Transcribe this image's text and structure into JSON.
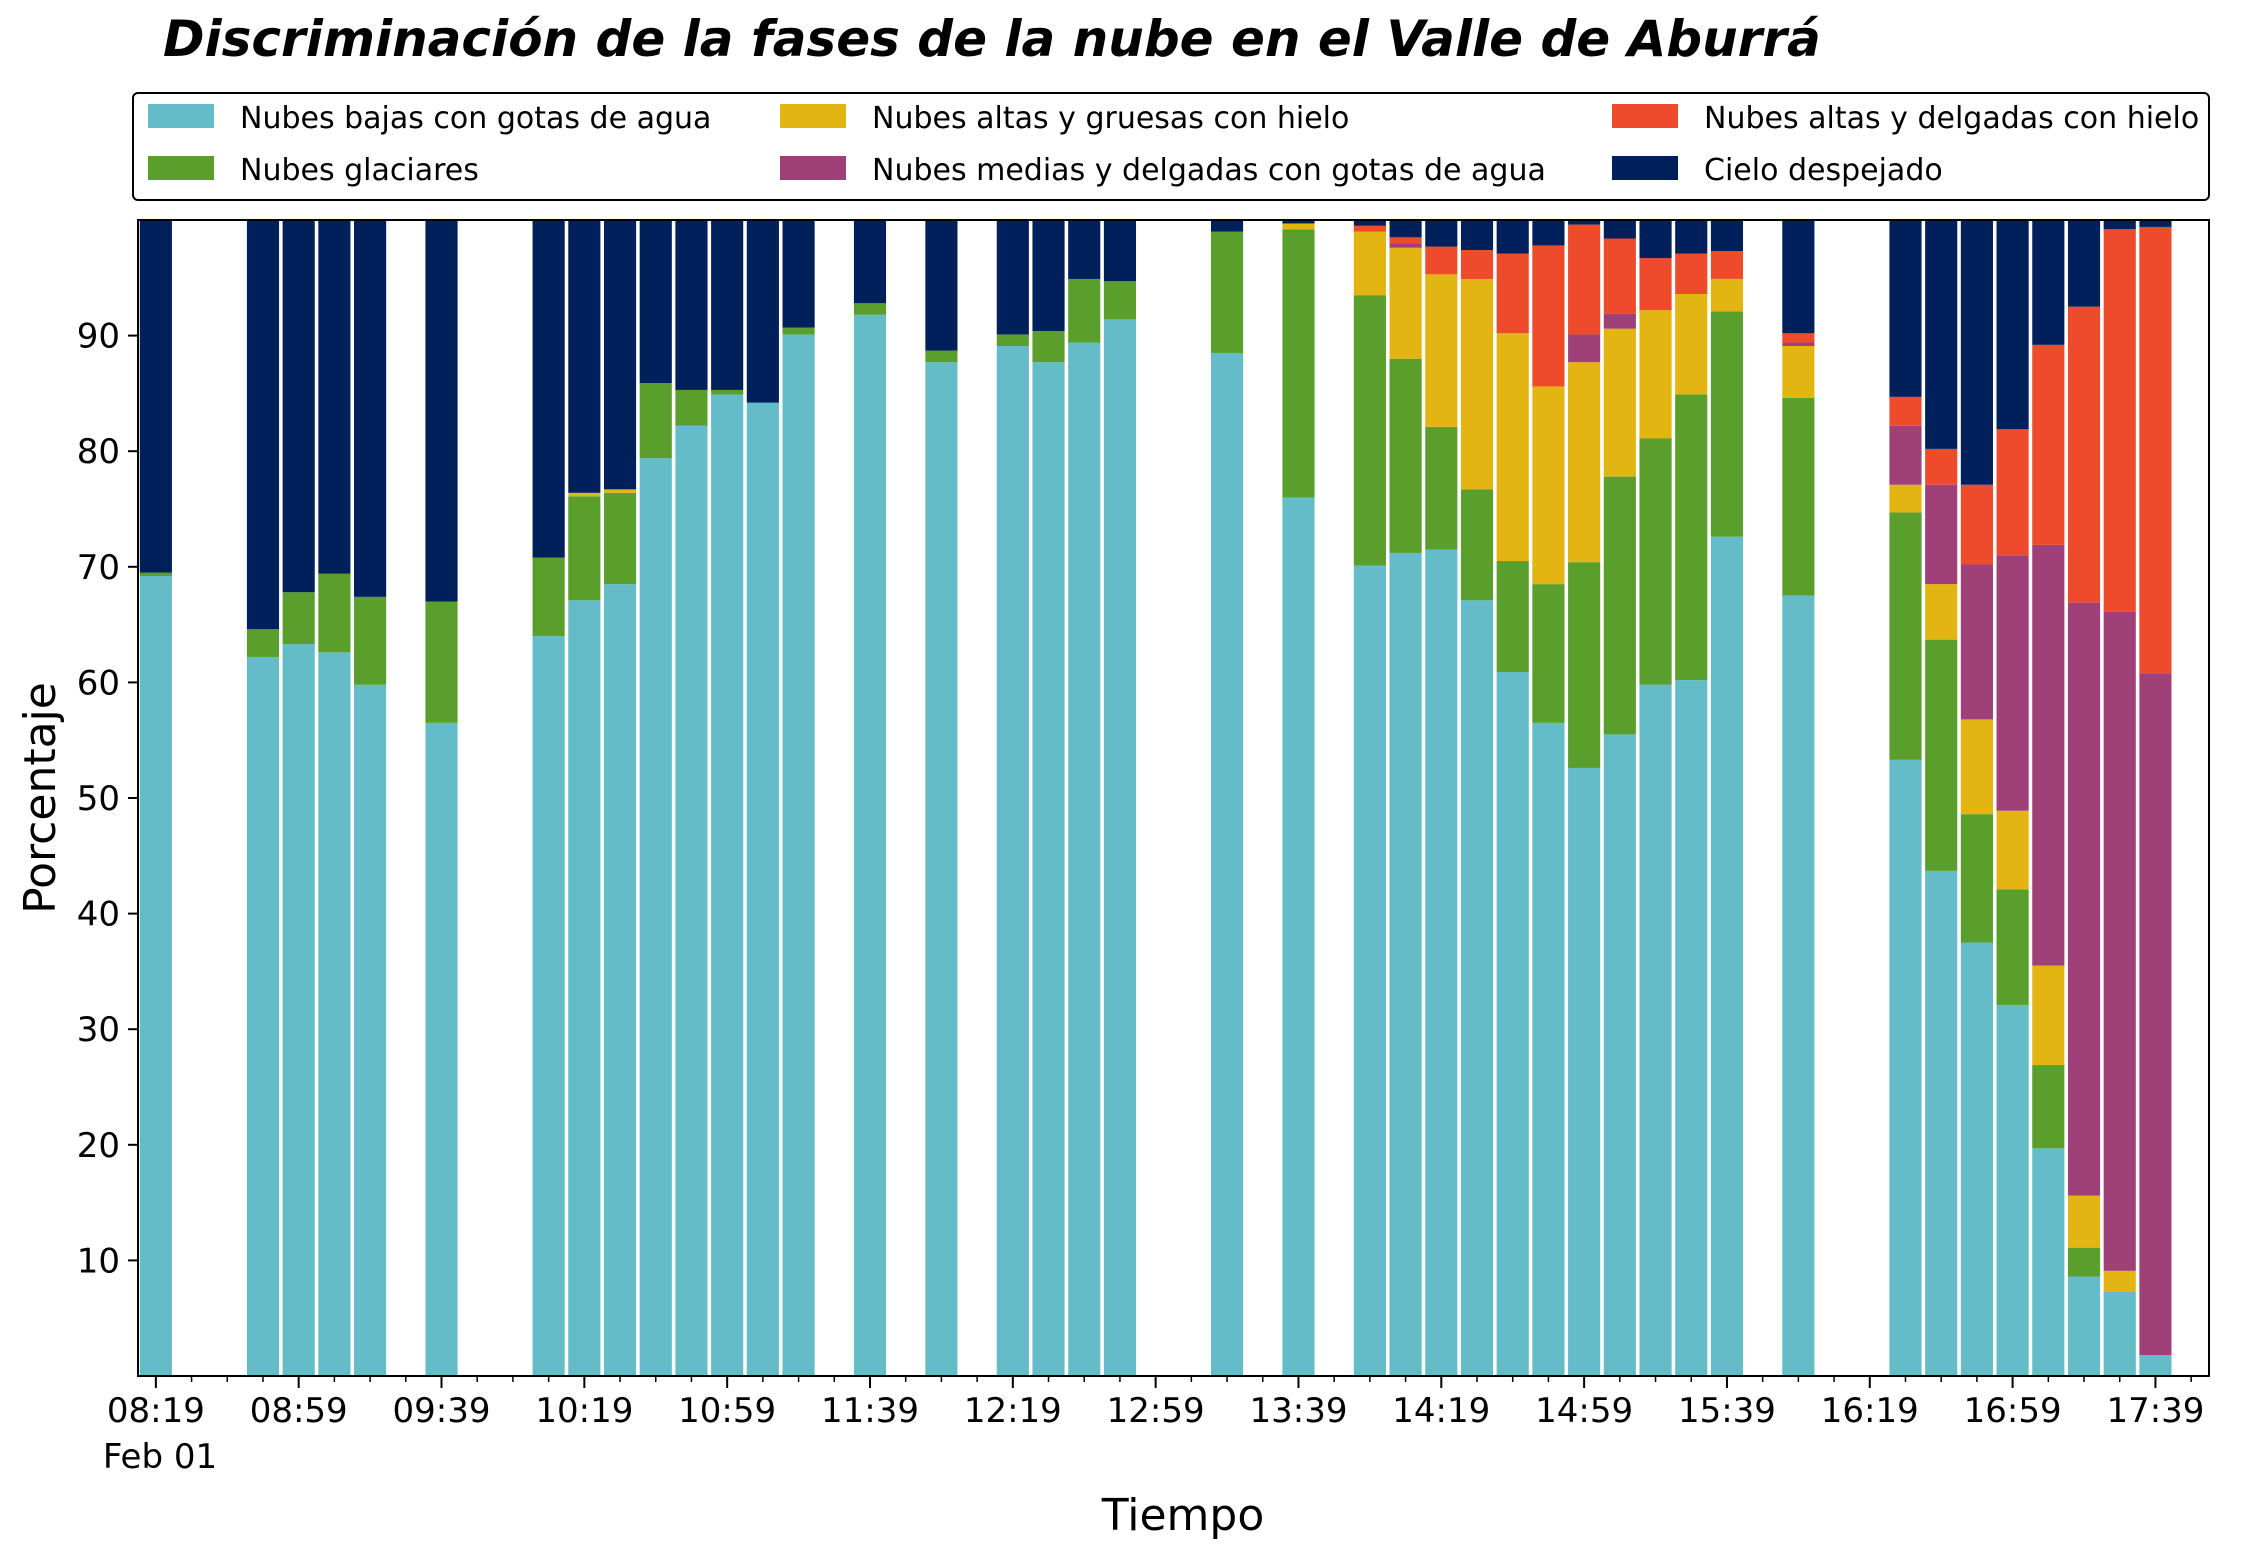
{
  "chart_data": {
    "type": "bar",
    "stacked": true,
    "title": "Discriminación de la fases de la nube en el Valle de Aburrá",
    "xlabel": "Tiempo",
    "ylabel": "Porcentaje",
    "ylim": [
      0,
      100
    ],
    "yticks": [
      10,
      20,
      30,
      40,
      50,
      60,
      70,
      80,
      90
    ],
    "x_interval_minutes": 10,
    "x_range": [
      "08:14",
      "17:54"
    ],
    "xtick_labels": [
      "08:19",
      "08:59",
      "09:39",
      "10:19",
      "10:59",
      "11:39",
      "12:19",
      "12:59",
      "13:39",
      "14:19",
      "14:59",
      "15:39",
      "16:19",
      "16:59",
      "17:39"
    ],
    "date_label": "Feb 01",
    "grid": false,
    "legend_placement": "top",
    "x": [
      "08:19",
      "08:49",
      "08:54",
      "08:59",
      "09:04",
      "09:09",
      "09:14",
      "09:19",
      "09:24",
      "09:29",
      "09:34",
      "09:39",
      "09:44",
      "09:49",
      "09:54",
      "09:59",
      "10:04",
      "10:09",
      "10:14",
      "10:19",
      "10:24",
      "10:29",
      "10:34",
      "10:39",
      "10:44",
      "10:49",
      "10:54",
      "10:59",
      "11:04",
      "11:09",
      "11:14",
      "11:19",
      "11:24",
      "11:29",
      "11:34",
      "11:39",
      "11:44",
      "11:49",
      "11:54",
      "11:59",
      "12:04",
      "12:09",
      "12:14",
      "12:19",
      "12:24",
      "12:29",
      "12:34",
      "12:39",
      "12:44",
      "12:49",
      "12:54",
      "12:59",
      "13:04",
      "13:09",
      "13:14",
      "13:19",
      "13:24",
      "13:29",
      "13:34",
      "13:39",
      "13:44",
      "13:49",
      "13:54",
      "13:59",
      "14:04",
      "14:09",
      "14:14",
      "14:19",
      "14:24",
      "14:29",
      "14:34",
      "14:39",
      "14:44",
      "14:49",
      "14:54",
      "14:59",
      "15:04",
      "15:09",
      "15:14",
      "15:19",
      "15:24",
      "15:29",
      "15:34",
      "15:39",
      "15:44",
      "15:49",
      "15:54",
      "15:59",
      "16:04",
      "16:09",
      "16:14",
      "16:19",
      "16:24",
      "16:29",
      "16:34",
      "16:39",
      "16:44",
      "16:49",
      "16:54",
      "16:59",
      "17:04",
      "17:09",
      "17:14",
      "17:19",
      "17:24",
      "17:29",
      "17:34",
      "17:39",
      "17:44",
      "17:49"
    ],
    "bars": [
      {
        "time": "08:19",
        "values": [
          69.2,
          0.3,
          0,
          0,
          0,
          30.5
        ]
      },
      {
        "time": "08:49",
        "values": [
          62.2,
          2.4,
          0,
          0,
          0,
          35.4
        ]
      },
      {
        "time": "08:59",
        "values": [
          63.3,
          4.5,
          0,
          0,
          0,
          32.2
        ]
      },
      {
        "time": "09:09",
        "values": [
          62.6,
          6.8,
          0,
          0,
          0,
          30.6
        ]
      },
      {
        "time": "09:19",
        "values": [
          59.8,
          7.6,
          0,
          0,
          0,
          32.6
        ]
      },
      {
        "time": "09:39",
        "values": [
          56.5,
          10.5,
          0,
          0,
          0,
          33.0
        ]
      },
      {
        "time": "10:09",
        "values": [
          64.0,
          6.8,
          0,
          0,
          0,
          29.2
        ]
      },
      {
        "time": "10:19",
        "values": [
          67.1,
          9.0,
          0.3,
          0,
          0,
          23.6
        ]
      },
      {
        "time": "10:29",
        "values": [
          68.5,
          7.9,
          0.3,
          0,
          0,
          23.3
        ]
      },
      {
        "time": "10:39",
        "values": [
          79.4,
          6.5,
          0,
          0,
          0,
          14.1
        ]
      },
      {
        "time": "10:49",
        "values": [
          82.2,
          3.1,
          0,
          0,
          0,
          14.7
        ]
      },
      {
        "time": "10:59",
        "values": [
          84.9,
          0.4,
          0,
          0,
          0,
          14.7
        ]
      },
      {
        "time": "11:09",
        "values": [
          84.2,
          0,
          0,
          0,
          0,
          15.8
        ]
      },
      {
        "time": "11:19",
        "values": [
          90.1,
          0.6,
          0,
          0,
          0,
          9.3
        ]
      },
      {
        "time": "11:39",
        "values": [
          91.8,
          1.0,
          0,
          0,
          0,
          7.2
        ]
      },
      {
        "time": "11:59",
        "values": [
          87.7,
          1.0,
          0,
          0,
          0,
          11.3
        ]
      },
      {
        "time": "12:19",
        "values": [
          89.1,
          1.0,
          0,
          0,
          0,
          9.9
        ]
      },
      {
        "time": "12:29",
        "values": [
          87.7,
          2.7,
          0,
          0,
          0,
          9.6
        ]
      },
      {
        "time": "12:39",
        "values": [
          89.4,
          5.5,
          0,
          0,
          0,
          5.1
        ]
      },
      {
        "time": "12:49",
        "values": [
          91.4,
          3.3,
          0,
          0,
          0,
          5.3
        ]
      },
      {
        "time": "13:19",
        "values": [
          88.5,
          10.5,
          0,
          0,
          0,
          1.0
        ]
      },
      {
        "time": "13:39",
        "values": [
          76.0,
          23.2,
          0.5,
          0,
          0,
          0.3
        ]
      },
      {
        "time": "13:59",
        "values": [
          70.1,
          23.4,
          5.5,
          0,
          0.5,
          0.5
        ]
      },
      {
        "time": "14:09",
        "values": [
          71.2,
          16.8,
          9.6,
          0.4,
          0.5,
          1.5
        ]
      },
      {
        "time": "14:19",
        "values": [
          71.5,
          10.6,
          13.2,
          0,
          2.4,
          2.3
        ]
      },
      {
        "time": "14:29",
        "values": [
          67.1,
          9.6,
          18.2,
          0,
          2.5,
          2.6
        ]
      },
      {
        "time": "14:39",
        "values": [
          60.9,
          9.6,
          19.7,
          0,
          6.9,
          2.9
        ]
      },
      {
        "time": "14:49",
        "values": [
          56.5,
          12.0,
          17.1,
          0,
          12.2,
          2.2
        ]
      },
      {
        "time": "14:59",
        "values": [
          52.6,
          17.8,
          17.3,
          2.4,
          9.5,
          0.4
        ]
      },
      {
        "time": "15:09",
        "values": [
          55.5,
          22.3,
          12.8,
          1.3,
          6.5,
          1.6
        ]
      },
      {
        "time": "15:19",
        "values": [
          59.8,
          21.3,
          11.1,
          0,
          4.5,
          3.3
        ]
      },
      {
        "time": "15:29",
        "values": [
          60.2,
          24.7,
          8.7,
          0,
          3.5,
          2.9
        ]
      },
      {
        "time": "15:39",
        "values": [
          72.6,
          19.5,
          2.8,
          0,
          2.4,
          2.7
        ]
      },
      {
        "time": "15:59",
        "values": [
          67.5,
          17.1,
          4.5,
          0.3,
          0.8,
          9.8
        ]
      },
      {
        "time": "16:29",
        "values": [
          53.3,
          21.4,
          2.4,
          5.1,
          2.5,
          15.3
        ]
      },
      {
        "time": "16:39",
        "values": [
          43.7,
          20.0,
          4.8,
          8.6,
          3.1,
          19.8
        ]
      },
      {
        "time": "16:49",
        "values": [
          37.5,
          11.1,
          8.2,
          13.4,
          6.9,
          22.9
        ]
      },
      {
        "time": "16:59",
        "values": [
          32.1,
          10.0,
          6.8,
          22.1,
          10.9,
          18.1
        ]
      },
      {
        "time": "17:09",
        "values": [
          19.7,
          7.2,
          8.6,
          36.4,
          17.3,
          10.8
        ]
      },
      {
        "time": "17:19",
        "values": [
          8.6,
          2.5,
          4.5,
          51.3,
          25.6,
          7.5
        ]
      },
      {
        "time": "17:29",
        "values": [
          7.3,
          0,
          1.8,
          57.0,
          33.1,
          0.8
        ]
      },
      {
        "time": "17:39",
        "values": [
          1.8,
          0,
          0,
          59.0,
          38.6,
          0.6
        ]
      }
    ],
    "series": [
      {
        "name": "Nubes bajas con gotas de agua",
        "color": "#63bcc8"
      },
      {
        "name": "Nubes glaciares",
        "color": "#5a9e2b"
      },
      {
        "name": "Nubes altas y gruesas con hielo",
        "color": "#e3b513"
      },
      {
        "name": "Nubes medias y delgadas con gotas de agua",
        "color": "#9f4178"
      },
      {
        "name": "Nubes altas y delgadas con hielo",
        "color": "#ee4a2c"
      },
      {
        "name": "Cielo despejado",
        "color": "#00205b"
      }
    ],
    "legend_order": [
      0,
      2,
      4,
      1,
      3,
      5
    ]
  }
}
